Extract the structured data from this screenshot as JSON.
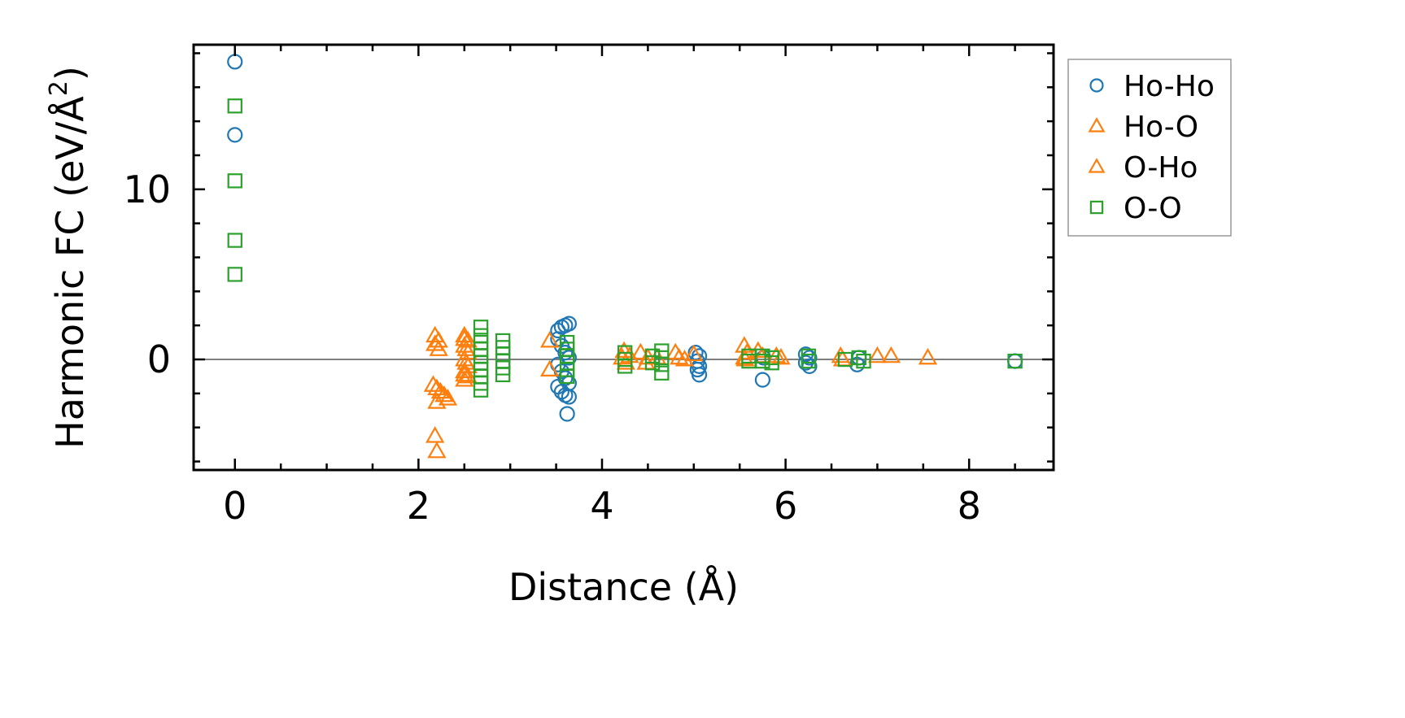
{
  "chart_data": {
    "type": "scatter",
    "title": "",
    "xlabel": "Distance (Å)",
    "ylabel_main": "Harmonic FC (eV/Å",
    "ylabel_sup": "2",
    "ylabel_end": ")",
    "xlim": [
      -0.45,
      8.92
    ],
    "ylim": [
      -6.5,
      18.5
    ],
    "xticks": [
      0,
      2,
      4,
      6,
      8
    ],
    "xtick_labels": [
      "0",
      "2",
      "4",
      "6",
      "8"
    ],
    "xminor": [
      0.5,
      1,
      1.5,
      2.5,
      3,
      3.5,
      4.5,
      5,
      5.5,
      6.5,
      7,
      7.5,
      8.5
    ],
    "yticks": [
      0,
      10
    ],
    "ytick_labels": [
      "0",
      "10"
    ],
    "yminor": [
      -5,
      5,
      15
    ],
    "yminor_step": 2,
    "zero_line": 0,
    "legend_position": "outside-right-top",
    "series": [
      {
        "name": "Ho-Ho",
        "marker": "circle",
        "color": "#1f77b4",
        "points": [
          [
            0,
            17.5
          ],
          [
            0,
            13.2
          ],
          [
            3.52,
            1.7
          ],
          [
            3.56,
            1.9
          ],
          [
            3.6,
            2.0
          ],
          [
            3.64,
            2.1
          ],
          [
            3.52,
            1.2
          ],
          [
            3.56,
            0.8
          ],
          [
            3.6,
            0.4
          ],
          [
            3.64,
            0.1
          ],
          [
            3.52,
            -0.3
          ],
          [
            3.56,
            -0.7
          ],
          [
            3.6,
            -1.1
          ],
          [
            3.64,
            -1.4
          ],
          [
            3.52,
            -1.6
          ],
          [
            3.56,
            -1.9
          ],
          [
            3.6,
            -2.1
          ],
          [
            3.64,
            -2.2
          ],
          [
            3.62,
            -3.2
          ],
          [
            5.02,
            0.4
          ],
          [
            5.06,
            0.2
          ],
          [
            5.04,
            -0.1
          ],
          [
            5.06,
            -0.4
          ],
          [
            5.04,
            -0.6
          ],
          [
            5.06,
            -0.9
          ],
          [
            5.75,
            -1.2
          ],
          [
            5.76,
            0.1
          ],
          [
            6.22,
            0.3
          ],
          [
            6.26,
            0.1
          ],
          [
            6.22,
            -0.2
          ],
          [
            6.26,
            -0.4
          ],
          [
            6.78,
            -0.3
          ],
          [
            6.8,
            0.1
          ],
          [
            8.5,
            -0.1
          ]
        ]
      },
      {
        "name": "Ho-O",
        "marker": "triangle",
        "color": "#ff7f0e",
        "points": [
          [
            2.18,
            1.4
          ],
          [
            2.22,
            1.1
          ],
          [
            2.18,
            0.9
          ],
          [
            2.22,
            0.6
          ],
          [
            2.16,
            -1.5
          ],
          [
            2.2,
            -1.7
          ],
          [
            2.24,
            -1.9
          ],
          [
            2.28,
            -2.1
          ],
          [
            2.32,
            -2.3
          ],
          [
            2.2,
            -2.5
          ],
          [
            2.18,
            -4.5
          ],
          [
            2.2,
            -5.4
          ],
          [
            2.5,
            1.4
          ],
          [
            2.54,
            1.1
          ],
          [
            2.5,
            0.8
          ],
          [
            2.54,
            0.4
          ],
          [
            2.5,
            0.0
          ],
          [
            2.54,
            -0.4
          ],
          [
            2.5,
            -0.7
          ],
          [
            2.54,
            -1.0
          ],
          [
            2.5,
            -1.2
          ],
          [
            3.43,
            1.1
          ],
          [
            3.43,
            -0.6
          ],
          [
            4.24,
            0.5
          ],
          [
            4.3,
            0.2
          ],
          [
            4.26,
            -0.2
          ],
          [
            4.42,
            0.4
          ],
          [
            4.5,
            0.1
          ],
          [
            4.48,
            -0.2
          ],
          [
            4.8,
            0.4
          ],
          [
            4.84,
            0.1
          ],
          [
            5.0,
            0.3
          ],
          [
            5.55,
            0.8
          ],
          [
            5.58,
            0.4
          ],
          [
            5.56,
            0.0
          ],
          [
            5.7,
            0.5
          ],
          [
            5.75,
            0.2
          ],
          [
            5.9,
            0.2
          ],
          [
            5.95,
            0.1
          ],
          [
            6.6,
            0.2
          ],
          [
            6.62,
            0.0
          ],
          [
            7.0,
            0.2
          ],
          [
            7.15,
            0.2
          ],
          [
            7.55,
            0.1
          ]
        ]
      },
      {
        "name": "O-Ho",
        "marker": "triangle",
        "color": "#ff7f0e",
        "points": [
          [
            2.5,
            1.2
          ],
          [
            2.52,
            0.6
          ],
          [
            2.52,
            -0.2
          ],
          [
            2.5,
            -0.9
          ],
          [
            4.22,
            0.1
          ],
          [
            4.6,
            0.1
          ],
          [
            4.9,
            0.0
          ],
          [
            5.55,
            0.1
          ]
        ]
      },
      {
        "name": "O-O",
        "marker": "square",
        "color": "#2ca02c",
        "points": [
          [
            0,
            14.9
          ],
          [
            0,
            10.5
          ],
          [
            0,
            7.0
          ],
          [
            0,
            5.0
          ],
          [
            2.68,
            1.9
          ],
          [
            2.68,
            1.4
          ],
          [
            2.68,
            1.0
          ],
          [
            2.68,
            0.6
          ],
          [
            2.68,
            0.2
          ],
          [
            2.68,
            -0.2
          ],
          [
            2.68,
            -0.6
          ],
          [
            2.68,
            -1.0
          ],
          [
            2.68,
            -1.4
          ],
          [
            2.68,
            -1.8
          ],
          [
            2.92,
            1.1
          ],
          [
            2.92,
            0.7
          ],
          [
            2.92,
            0.3
          ],
          [
            2.92,
            -0.1
          ],
          [
            2.92,
            -0.5
          ],
          [
            2.92,
            -0.9
          ],
          [
            3.62,
            1.0
          ],
          [
            3.62,
            0.6
          ],
          [
            3.62,
            0.2
          ],
          [
            3.62,
            -0.2
          ],
          [
            3.62,
            -0.6
          ],
          [
            3.62,
            -1.0
          ],
          [
            4.25,
            0.4
          ],
          [
            4.25,
            0.0
          ],
          [
            4.25,
            -0.4
          ],
          [
            4.55,
            0.2
          ],
          [
            4.55,
            -0.2
          ],
          [
            4.65,
            0.5
          ],
          [
            4.65,
            0.1
          ],
          [
            4.65,
            -0.3
          ],
          [
            4.65,
            -0.8
          ],
          [
            5.6,
            0.2
          ],
          [
            5.6,
            -0.1
          ],
          [
            5.75,
            0.2
          ],
          [
            5.75,
            -0.1
          ],
          [
            5.85,
            0.1
          ],
          [
            5.85,
            -0.2
          ],
          [
            6.25,
            0.2
          ],
          [
            6.25,
            -0.1
          ],
          [
            6.65,
            0.0
          ],
          [
            6.8,
            0.1
          ],
          [
            6.85,
            -0.1
          ],
          [
            8.5,
            -0.1
          ]
        ]
      }
    ]
  }
}
